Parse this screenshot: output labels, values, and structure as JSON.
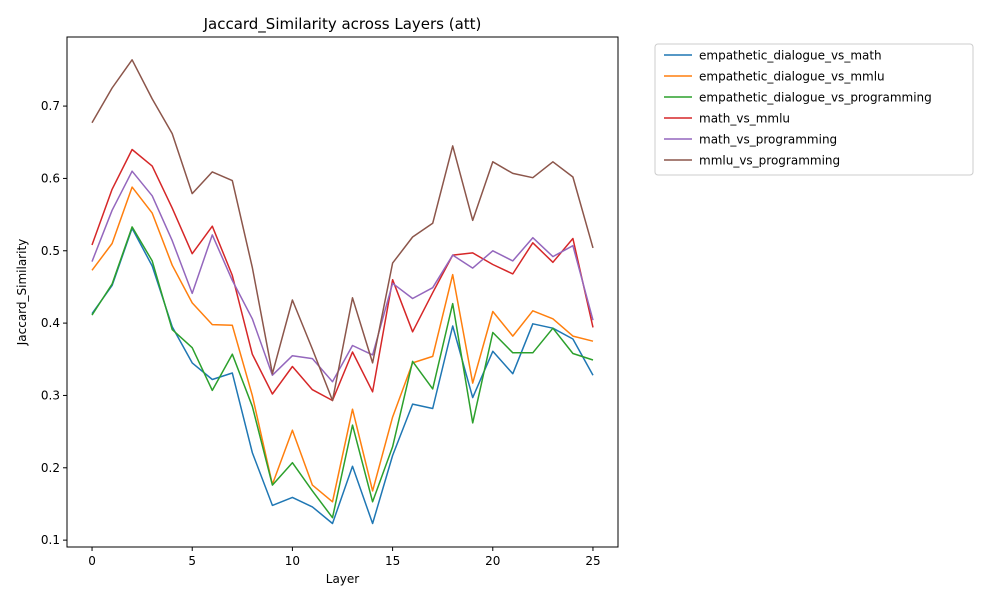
{
  "chart_data": {
    "type": "line",
    "title": "Jaccard_Similarity across Layers (att)",
    "xlabel": "Layer",
    "ylabel": "Jaccard_Similarity",
    "xlim": [
      -1.25,
      26.25
    ],
    "ylim": [
      0.0905,
      0.7955
    ],
    "xticks": [
      0,
      5,
      10,
      15,
      20,
      25
    ],
    "yticks": [
      0.1,
      0.2,
      0.3,
      0.4,
      0.5,
      0.6,
      0.7
    ],
    "grid": false,
    "legend_position": "outside upper right",
    "x": [
      0,
      1,
      2,
      3,
      4,
      5,
      6,
      7,
      8,
      9,
      10,
      11,
      12,
      13,
      14,
      15,
      16,
      17,
      18,
      19,
      20,
      21,
      22,
      23,
      24,
      25
    ],
    "series": [
      {
        "name": "empathetic_dialogue_vs_math",
        "color": "#1f77b4",
        "values": [
          0.413,
          0.452,
          0.531,
          0.479,
          0.395,
          0.345,
          0.322,
          0.331,
          0.221,
          0.148,
          0.159,
          0.146,
          0.123,
          0.202,
          0.123,
          0.217,
          0.288,
          0.282,
          0.396,
          0.297,
          0.361,
          0.33,
          0.399,
          0.393,
          0.378,
          0.328
        ]
      },
      {
        "name": "empathetic_dialogue_vs_mmlu",
        "color": "#ff7f0e",
        "values": [
          0.473,
          0.51,
          0.588,
          0.552,
          0.48,
          0.428,
          0.398,
          0.397,
          0.3,
          0.177,
          0.252,
          0.176,
          0.153,
          0.281,
          0.168,
          0.27,
          0.345,
          0.354,
          0.467,
          0.317,
          0.416,
          0.382,
          0.417,
          0.406,
          0.382,
          0.375
        ]
      },
      {
        "name": "empathetic_dialogue_vs_programming",
        "color": "#2ca02c",
        "values": [
          0.411,
          0.454,
          0.533,
          0.486,
          0.391,
          0.366,
          0.307,
          0.357,
          0.285,
          0.176,
          0.207,
          0.168,
          0.131,
          0.259,
          0.153,
          0.229,
          0.347,
          0.309,
          0.427,
          0.262,
          0.387,
          0.359,
          0.359,
          0.393,
          0.358,
          0.349
        ]
      },
      {
        "name": "math_vs_mmlu",
        "color": "#d62728",
        "values": [
          0.508,
          0.585,
          0.64,
          0.617,
          0.559,
          0.496,
          0.534,
          0.466,
          0.357,
          0.302,
          0.34,
          0.308,
          0.293,
          0.36,
          0.305,
          0.46,
          0.388,
          0.442,
          0.494,
          0.497,
          0.481,
          0.468,
          0.511,
          0.484,
          0.517,
          0.394
        ]
      },
      {
        "name": "math_vs_programming",
        "color": "#9467bd",
        "values": [
          0.485,
          0.556,
          0.61,
          0.576,
          0.514,
          0.441,
          0.522,
          0.459,
          0.406,
          0.328,
          0.355,
          0.351,
          0.319,
          0.369,
          0.356,
          0.455,
          0.434,
          0.449,
          0.494,
          0.476,
          0.5,
          0.486,
          0.518,
          0.492,
          0.507,
          0.404
        ]
      },
      {
        "name": "mmlu_vs_programming",
        "color": "#8c564b",
        "values": [
          0.677,
          0.725,
          0.764,
          0.71,
          0.662,
          0.579,
          0.609,
          0.597,
          0.477,
          0.33,
          0.432,
          0.364,
          0.293,
          0.435,
          0.345,
          0.483,
          0.519,
          0.538,
          0.645,
          0.542,
          0.623,
          0.607,
          0.601,
          0.623,
          0.602,
          0.504
        ]
      }
    ]
  }
}
